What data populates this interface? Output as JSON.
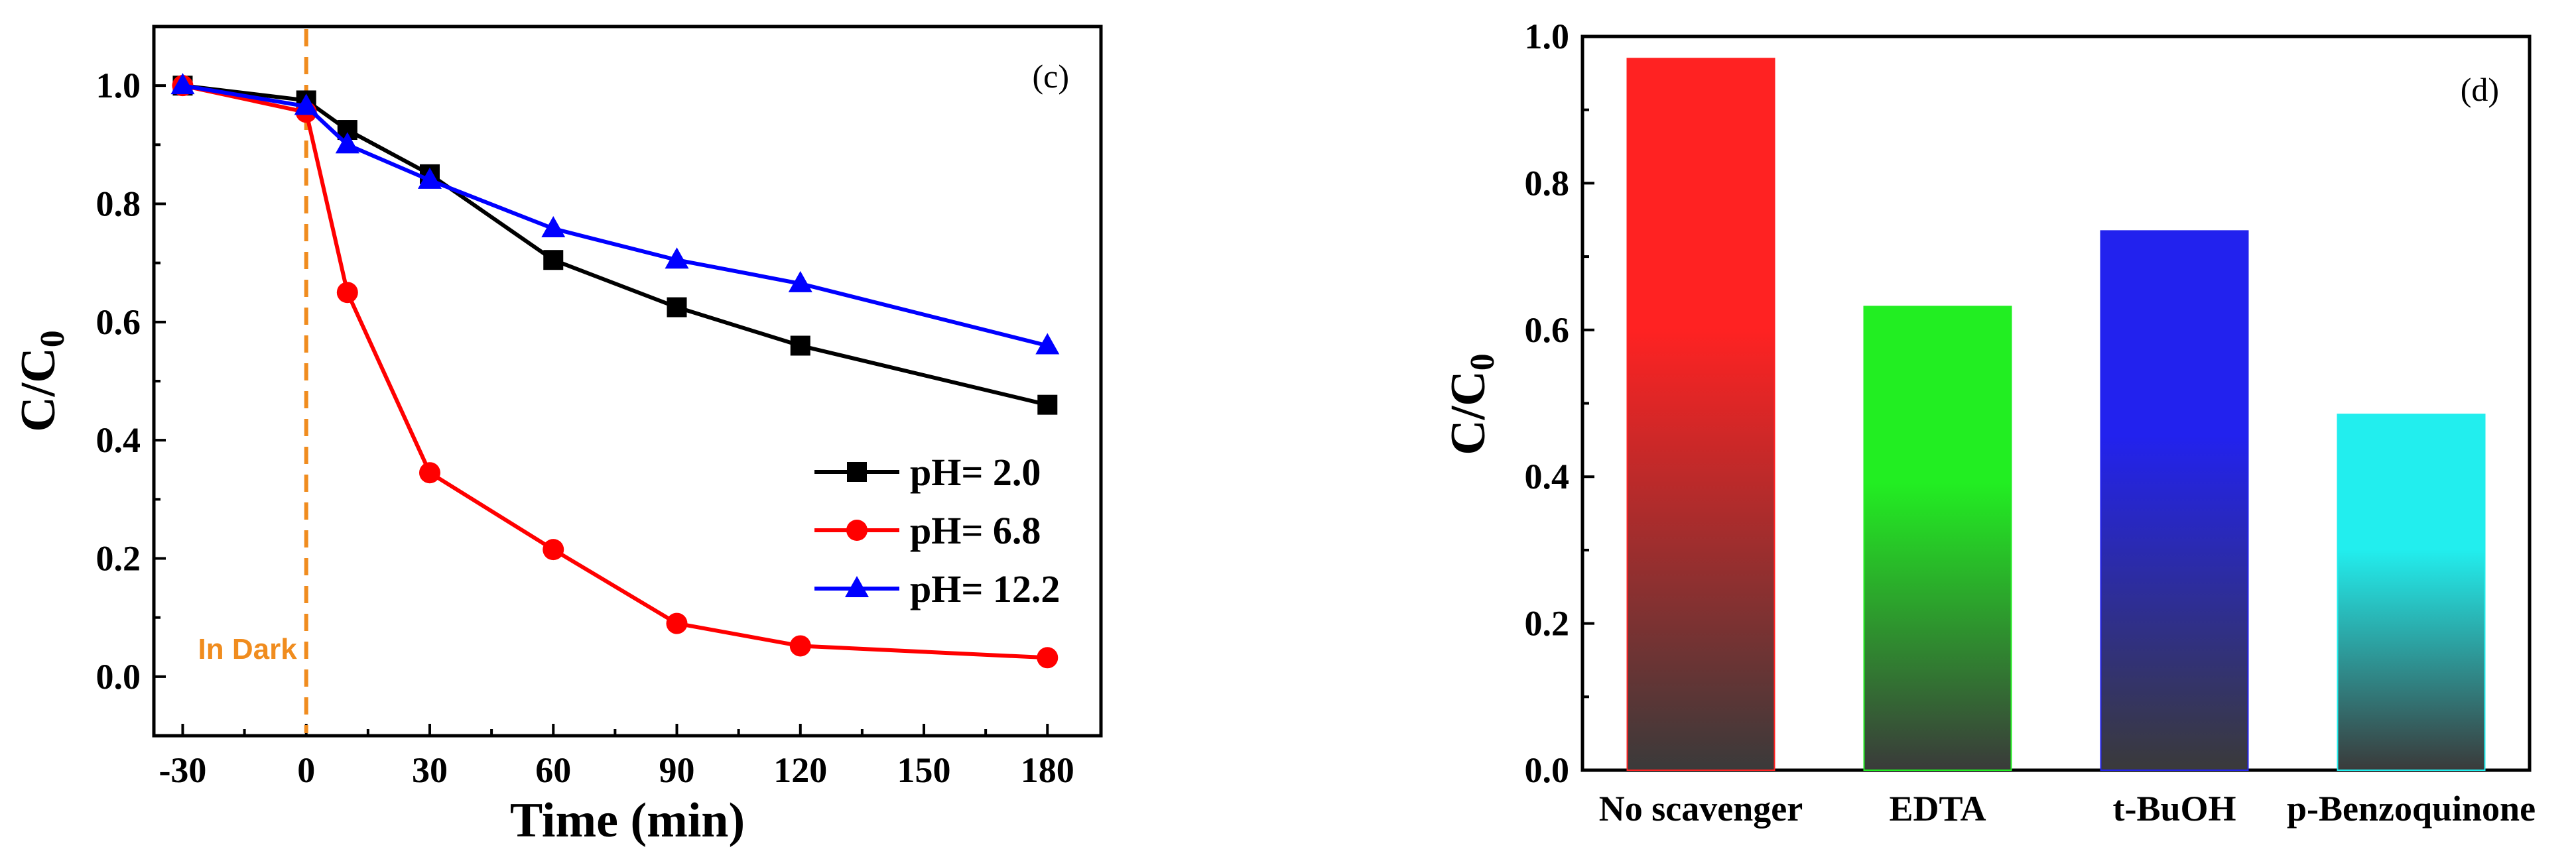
{
  "chart_data": [
    {
      "type": "line",
      "panel_label": "(c)",
      "xlabel": "Time (min)",
      "ylabel": {
        "base": "C/C",
        "sub": "0"
      },
      "xlim": [
        -37,
        193
      ],
      "ylim": [
        -0.1,
        1.1
      ],
      "xticks": [
        -30,
        0,
        30,
        60,
        90,
        120,
        150,
        180
      ],
      "xtick_labels": [
        "-30",
        "0",
        "30",
        "60",
        "90",
        "120",
        "150",
        "180"
      ],
      "yticks": [
        0.0,
        0.2,
        0.4,
        0.6,
        0.8,
        1.0
      ],
      "ytick_labels": [
        "0.0",
        "0.2",
        "0.4",
        "0.6",
        "0.8",
        "1.0"
      ],
      "x": [
        -30,
        0,
        10,
        30,
        60,
        90,
        120,
        180
      ],
      "series": [
        {
          "name": "pH= 2.0",
          "color": "#000000",
          "marker": "square",
          "values": [
            1.0,
            0.975,
            0.925,
            0.85,
            0.705,
            0.625,
            0.56,
            0.46
          ]
        },
        {
          "name": "pH= 6.8",
          "color": "#ff0000",
          "marker": "circle",
          "values": [
            1.0,
            0.955,
            0.65,
            0.345,
            0.215,
            0.09,
            0.052,
            0.032
          ]
        },
        {
          "name": "pH= 12.2",
          "color": "#0000ff",
          "marker": "triangle",
          "values": [
            1.0,
            0.965,
            0.9,
            0.84,
            0.758,
            0.705,
            0.665,
            0.56
          ]
        }
      ],
      "annotation": {
        "text": "In Dark",
        "x": 0,
        "color": "#f08c1e"
      },
      "legend_position": "right-middle"
    },
    {
      "type": "bar",
      "panel_label": "(d)",
      "xlabel": "",
      "ylabel": {
        "base": "C/C",
        "sub": "0"
      },
      "ylim": [
        0.0,
        1.0
      ],
      "yticks": [
        0.0,
        0.2,
        0.4,
        0.6,
        0.8,
        1.0
      ],
      "ytick_labels": [
        "0.0",
        "0.2",
        "0.4",
        "0.6",
        "0.8",
        "1.0"
      ],
      "categories": [
        "No scavenger",
        "EDTA",
        "t-BuOH",
        "p-Benzoquinone"
      ],
      "values": [
        0.97,
        0.632,
        0.735,
        0.485
      ],
      "colors": [
        "#ff2222",
        "#22ee22",
        "#2222ee",
        "#22eeee"
      ],
      "bottom_color": "#3a3a3a"
    }
  ]
}
